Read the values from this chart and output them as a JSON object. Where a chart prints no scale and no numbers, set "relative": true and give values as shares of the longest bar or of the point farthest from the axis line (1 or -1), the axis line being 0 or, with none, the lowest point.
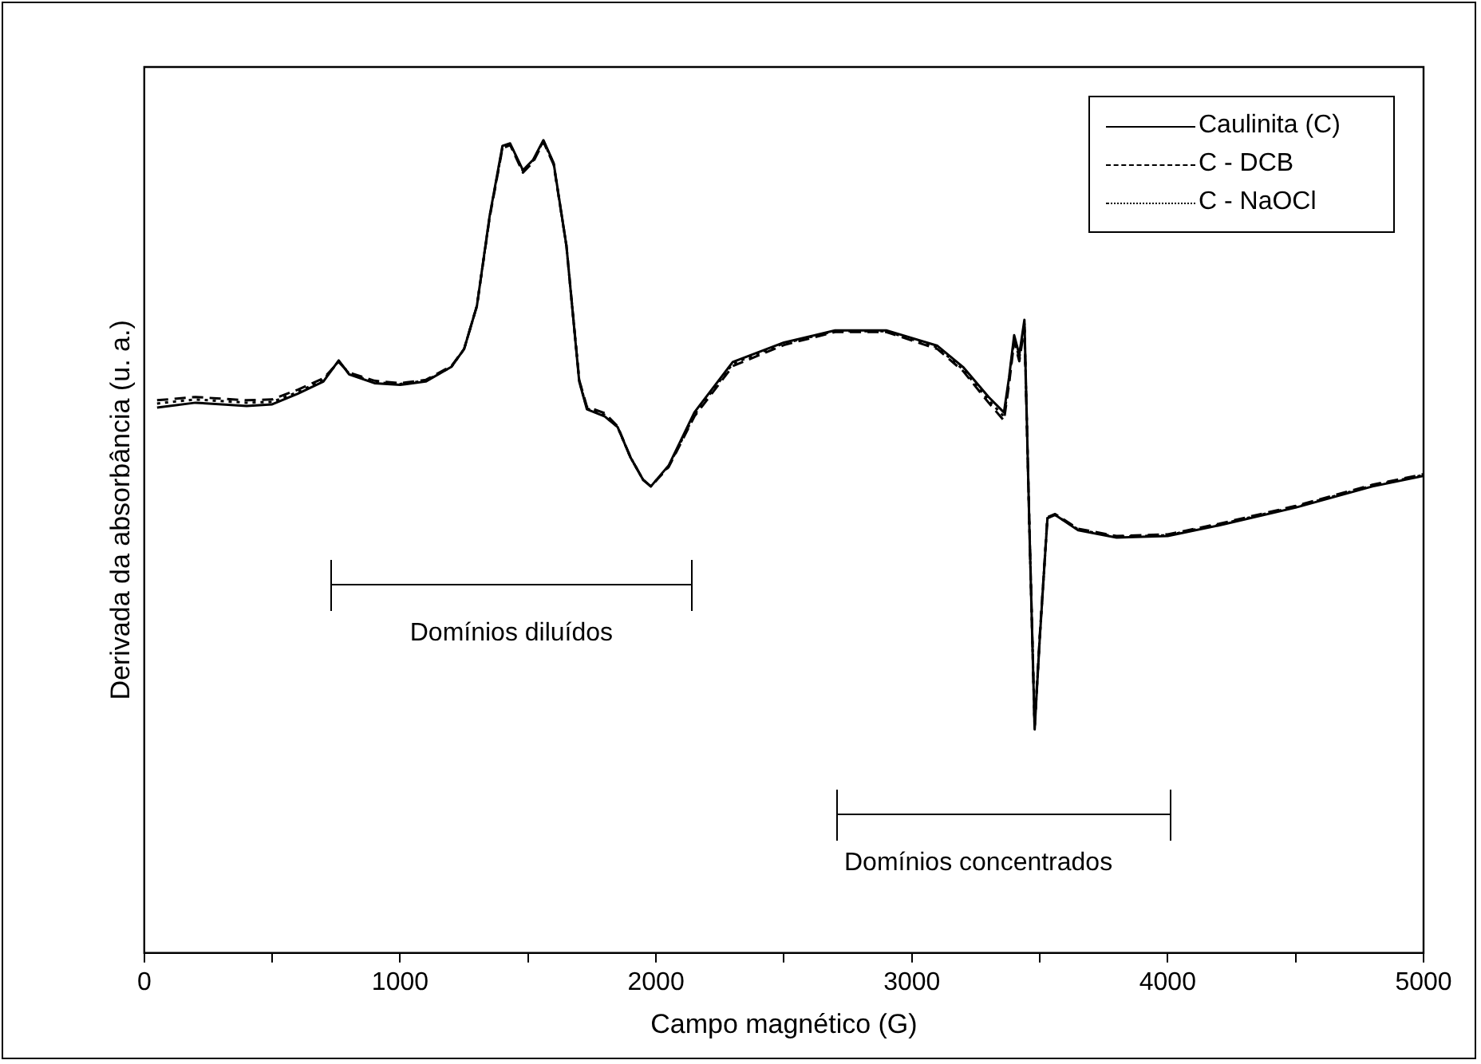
{
  "chart_data": {
    "type": "line",
    "relative": true,
    "xlabel": "Campo magnético (G)",
    "ylabel": "Derivada da absorbância (u. a.)",
    "xlim": [
      0,
      5000
    ],
    "xticks": [
      0,
      {
        "value": 500,
        "label": null
      },
      1000,
      {
        "value": 1500,
        "label": null
      },
      2000,
      {
        "value": 2500,
        "label": null
      },
      3000,
      {
        "value": 3500,
        "label": null
      },
      4000,
      {
        "value": 4500,
        "label": null
      },
      5000
    ],
    "legend": "top right",
    "grid": false,
    "marker": "none",
    "x": [
      50,
      200,
      400,
      500,
      600,
      700,
      760,
      800,
      900,
      1000,
      1100,
      1200,
      1250,
      1300,
      1350,
      1400,
      1430,
      1480,
      1520,
      1560,
      1600,
      1650,
      1700,
      1730,
      1800,
      1850,
      1900,
      1950,
      1980,
      2050,
      2150,
      2300,
      2500,
      2700,
      2900,
      3100,
      3200,
      3300,
      3360,
      3380,
      3400,
      3420,
      3440,
      3460,
      3480,
      3500,
      3530,
      3560,
      3650,
      3800,
      4000,
      4200,
      4500,
      4800,
      5000
    ],
    "series": [
      {
        "name": "Caulinita (C)",
        "color": "#000000",
        "line_style": "solid",
        "values": [
          0.671,
          0.677,
          0.673,
          0.675,
          0.688,
          0.703,
          0.729,
          0.712,
          0.701,
          0.699,
          0.703,
          0.721,
          0.743,
          0.796,
          0.907,
          0.993,
          0.996,
          0.963,
          0.976,
          1.0,
          0.972,
          0.87,
          0.703,
          0.669,
          0.66,
          0.647,
          0.61,
          0.582,
          0.574,
          0.6,
          0.665,
          0.727,
          0.751,
          0.766,
          0.766,
          0.747,
          0.721,
          0.684,
          0.665,
          0.708,
          0.76,
          0.736,
          0.779,
          0.517,
          0.275,
          0.387,
          0.535,
          0.539,
          0.52,
          0.511,
          0.513,
          0.526,
          0.548,
          0.574,
          0.587
        ]
      },
      {
        "name": "C - DCB",
        "color": "#000000",
        "line_style": "dashed",
        "values": [
          0.68,
          0.684,
          0.68,
          0.681,
          0.693,
          0.707,
          0.727,
          0.714,
          0.704,
          0.701,
          0.705,
          0.722,
          0.743,
          0.796,
          0.905,
          0.99,
          0.994,
          0.96,
          0.973,
          0.998,
          0.97,
          0.87,
          0.705,
          0.672,
          0.664,
          0.648,
          0.61,
          0.582,
          0.574,
          0.598,
          0.66,
          0.722,
          0.748,
          0.764,
          0.764,
          0.743,
          0.716,
          0.677,
          0.655,
          0.7,
          0.752,
          0.728,
          0.77,
          0.52,
          0.28,
          0.39,
          0.536,
          0.54,
          0.522,
          0.513,
          0.515,
          0.528,
          0.55,
          0.576,
          0.589
        ]
      },
      {
        "name": "C - NaOCl",
        "color": "#000000",
        "line_style": "dotted",
        "values": [
          0.676,
          0.681,
          0.677,
          0.678,
          0.69,
          0.705,
          0.728,
          0.713,
          0.702,
          0.7,
          0.704,
          0.721,
          0.743,
          0.796,
          0.906,
          0.991,
          0.995,
          0.962,
          0.975,
          0.999,
          0.971,
          0.87,
          0.704,
          0.67,
          0.662,
          0.647,
          0.61,
          0.582,
          0.574,
          0.599,
          0.662,
          0.725,
          0.75,
          0.765,
          0.765,
          0.745,
          0.718,
          0.68,
          0.66,
          0.704,
          0.756,
          0.732,
          0.774,
          0.518,
          0.278,
          0.388,
          0.535,
          0.539,
          0.521,
          0.512,
          0.514,
          0.527,
          0.549,
          0.575,
          0.588
        ]
      }
    ],
    "annotations": [
      "Domínios diluídos",
      "Domínios concentrados"
    ]
  }
}
